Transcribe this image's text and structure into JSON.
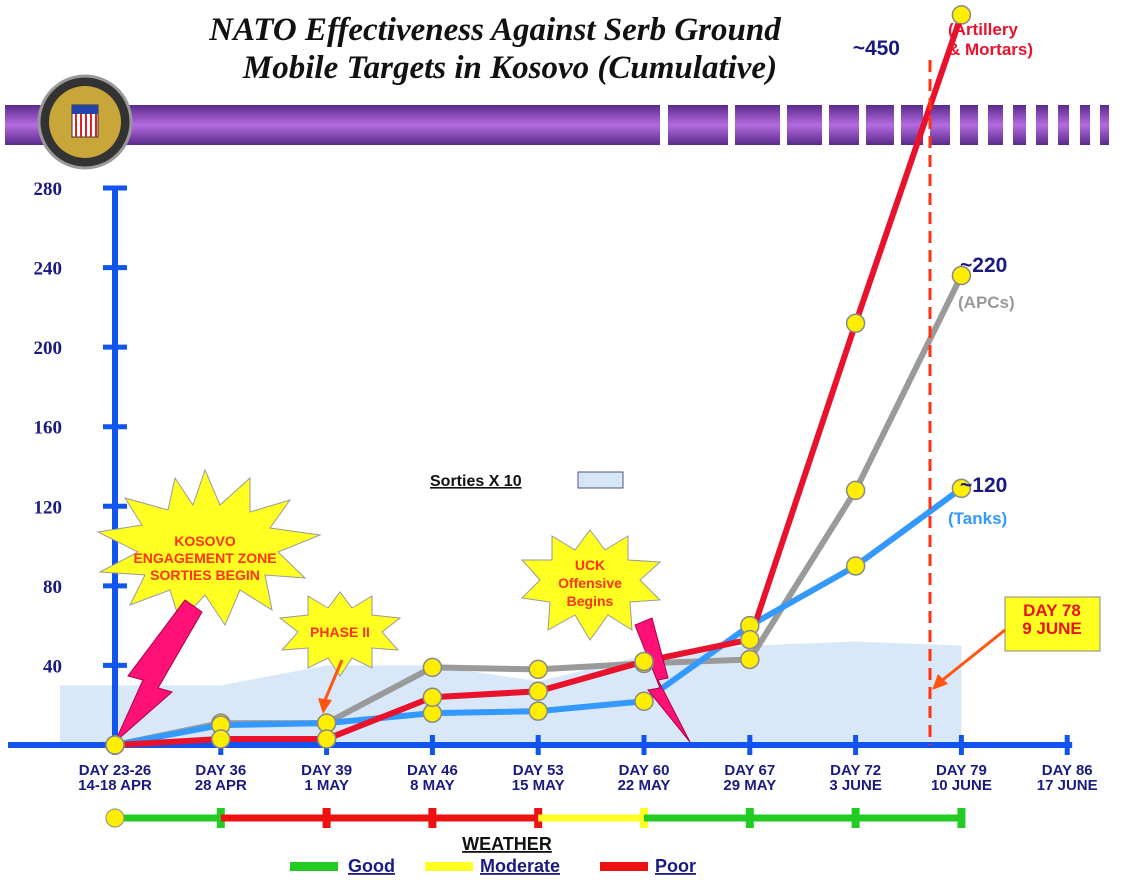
{
  "chart_data": {
    "type": "line",
    "title": [
      "NATO Effectiveness Against Serb Ground",
      "Mobile Targets in Kosovo (Cumulative)"
    ],
    "categories": [
      [
        "DAY 23-26",
        "14-18 APR"
      ],
      [
        "DAY 36",
        "28 APR"
      ],
      [
        "DAY 39",
        "1 MAY"
      ],
      [
        "DAY 46",
        "8 MAY"
      ],
      [
        "DAY 53",
        "15 MAY"
      ],
      [
        "DAY 60",
        "22 MAY"
      ],
      [
        "DAY 67",
        "29 MAY"
      ],
      [
        "DAY 72",
        "3 JUNE"
      ],
      [
        "DAY 79",
        "10 JUNE"
      ],
      [
        "DAY 86",
        "17 JUNE"
      ]
    ],
    "ylim": [
      0,
      280
    ],
    "yticks": [
      40,
      80,
      120,
      160,
      200,
      240,
      280
    ],
    "series": [
      {
        "name": "(APCs)",
        "end_label": "~220",
        "color": "#9a9a9a",
        "values": [
          0,
          11,
          11,
          39,
          38,
          41,
          43,
          128,
          236,
          null
        ]
      },
      {
        "name": "(Tanks)",
        "end_label": "~120",
        "color": "#3399ff",
        "values": [
          0,
          10,
          11,
          16,
          17,
          22,
          60,
          90,
          129,
          null
        ]
      },
      {
        "name": "(Artillery & Mortars)",
        "end_label": "~450",
        "color": "#e8122d",
        "values": [
          0,
          3,
          3,
          24,
          27,
          42,
          53,
          212,
          367,
          null
        ]
      }
    ],
    "sorties": {
      "name": "Sorties X 10",
      "color": "#d5e6f7",
      "values": [
        30,
        30,
        40,
        40,
        32,
        45,
        50,
        52,
        50,
        null
      ]
    },
    "annotations": [
      [
        "KOSOVO",
        "ENGAGEMENT ZONE",
        "SORTIES BEGIN"
      ],
      [
        "PHASE II"
      ],
      [
        "UCK",
        "Offensive",
        "Begins"
      ],
      [
        "DAY 78",
        "9 JUNE"
      ]
    ],
    "weather": {
      "title": "WEATHER",
      "legend": [
        {
          "name": "Good",
          "color": "#22cc22"
        },
        {
          "name": "Moderate",
          "color": "#ffff22"
        },
        {
          "name": "Poor",
          "color": "#ee1111"
        }
      ],
      "segments": [
        0,
        2,
        2,
        2,
        1,
        0,
        0,
        0
      ]
    }
  }
}
